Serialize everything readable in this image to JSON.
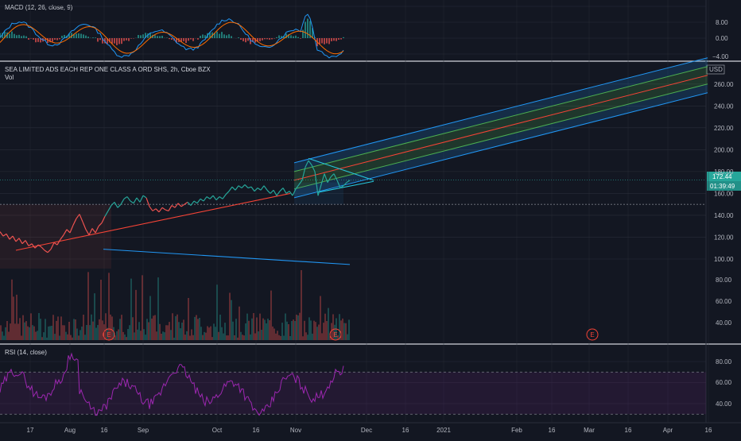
{
  "chart_data": [
    {
      "type": "line",
      "pane": "macd",
      "title": "MACD (12, 26, close, 9)",
      "ylim": [
        -4.5,
        9
      ],
      "y_ticks": [
        "8.00",
        "4.00",
        "0.00",
        "−4.00"
      ],
      "series": [
        {
          "name": "MACD",
          "color": "#2196f3"
        },
        {
          "name": "Signal",
          "color": "#ff6d00"
        },
        {
          "name": "Histogram",
          "color": "#26a69a"
        }
      ],
      "note_series_unlabeled": true
    },
    {
      "type": "line",
      "pane": "price",
      "title": "SEA LIMITED ADS EACH REP ONE CLASS A ORD SHS, 2h, Cboe BZX",
      "subtitle": "Vol",
      "currency": "USD",
      "ylim": [
        100,
        270
      ],
      "y_ticks": [
        "260.00",
        "240.00",
        "220.00",
        "200.00",
        "180.00",
        "160.00",
        "140.00",
        "120.00",
        "100.00"
      ],
      "last_price": "172.44",
      "countdown": "01:39:49",
      "price_line": 172.44,
      "reference_line": 150,
      "x_range": [
        0,
        440
      ],
      "price_points": [
        [
          0,
          125
        ],
        [
          4,
          121
        ],
        [
          8,
          123
        ],
        [
          12,
          118
        ],
        [
          16,
          121
        ],
        [
          20,
          116
        ],
        [
          24,
          119
        ],
        [
          28,
          114
        ],
        [
          32,
          117
        ],
        [
          36,
          112
        ],
        [
          40,
          114
        ],
        [
          44,
          110
        ],
        [
          48,
          113
        ],
        [
          52,
          111
        ],
        [
          56,
          108
        ],
        [
          60,
          106
        ],
        [
          64,
          109
        ],
        [
          68,
          115
        ],
        [
          72,
          113
        ],
        [
          76,
          118
        ],
        [
          80,
          122
        ],
        [
          84,
          127
        ],
        [
          88,
          124
        ],
        [
          92,
          131
        ],
        [
          96,
          137
        ],
        [
          100,
          141
        ],
        [
          104,
          134
        ],
        [
          108,
          127
        ],
        [
          112,
          122
        ],
        [
          116,
          128
        ],
        [
          120,
          124
        ],
        [
          124,
          130
        ],
        [
          128,
          133
        ],
        [
          132,
          139
        ],
        [
          136,
          144
        ],
        [
          140,
          149
        ],
        [
          144,
          152
        ],
        [
          148,
          147
        ],
        [
          152,
          150
        ],
        [
          156,
          155
        ],
        [
          160,
          157
        ],
        [
          164,
          153
        ],
        [
          168,
          151
        ],
        [
          172,
          156
        ],
        [
          176,
          152
        ],
        [
          180,
          158
        ],
        [
          184,
          156
        ],
        [
          188,
          148
        ],
        [
          192,
          144
        ],
        [
          196,
          146
        ],
        [
          200,
          143
        ],
        [
          204,
          147
        ],
        [
          208,
          145
        ],
        [
          212,
          144
        ],
        [
          216,
          149
        ],
        [
          220,
          147
        ],
        [
          224,
          151
        ],
        [
          228,
          148
        ],
        [
          232,
          150
        ],
        [
          236,
          152
        ],
        [
          240,
          149
        ],
        [
          244,
          153
        ],
        [
          248,
          151
        ],
        [
          252,
          155
        ],
        [
          256,
          153
        ],
        [
          260,
          157
        ],
        [
          264,
          155
        ],
        [
          268,
          158
        ],
        [
          272,
          154
        ],
        [
          276,
          157
        ],
        [
          280,
          155
        ],
        [
          284,
          159
        ],
        [
          288,
          162
        ],
        [
          292,
          166
        ],
        [
          296,
          163
        ],
        [
          300,
          167
        ],
        [
          304,
          165
        ],
        [
          308,
          168
        ],
        [
          312,
          165
        ],
        [
          316,
          166
        ],
        [
          320,
          162
        ],
        [
          324,
          165
        ],
        [
          328,
          163
        ],
        [
          332,
          167
        ],
        [
          336,
          163
        ],
        [
          340,
          160
        ],
        [
          344,
          163
        ],
        [
          348,
          158
        ],
        [
          352,
          162
        ],
        [
          356,
          165
        ],
        [
          360,
          160
        ],
        [
          364,
          162
        ],
        [
          368,
          158
        ],
        [
          372,
          164
        ],
        [
          376,
          168
        ],
        [
          380,
          172
        ],
        [
          384,
          184
        ],
        [
          388,
          190
        ],
        [
          392,
          186
        ],
        [
          396,
          180
        ],
        [
          400,
          158
        ],
        [
          404,
          168
        ],
        [
          408,
          178
        ],
        [
          412,
          170
        ],
        [
          416,
          175
        ],
        [
          420,
          178
        ],
        [
          424,
          172
        ],
        [
          428,
          165
        ],
        [
          432,
          167
        ],
        [
          436,
          170
        ],
        [
          440,
          172
        ]
      ],
      "trend_lines": [
        {
          "name": "lower-trendline",
          "color": "#f44336",
          "from": [
            20,
            108
          ],
          "to": [
            365,
            160
          ]
        },
        {
          "name": "blue-line",
          "color": "#2196f3",
          "from": [
            130,
            109
          ],
          "to": [
            440,
            95
          ]
        },
        {
          "name": "pennant-top",
          "color": "#26c6da",
          "from": [
            388,
            192
          ],
          "to": [
            470,
            172
          ]
        },
        {
          "name": "pennant-bottom",
          "color": "#26c6da",
          "from": [
            400,
            161
          ],
          "to": [
            470,
            171
          ]
        }
      ],
      "channel": {
        "start_x": 370,
        "end_x": 890,
        "start_mid": 172,
        "end_mid": 268,
        "offsets": [
          16,
          8,
          0,
          -8,
          -16
        ]
      },
      "volume_ylim": [
        30,
        160
      ],
      "volume_ticks": [
        "80.00",
        "60.00",
        "40.00"
      ],
      "earnings_markers": [
        "E",
        "E",
        "E"
      ],
      "x_axis_labels": [
        "17",
        "Aug",
        "16",
        "Sep",
        "Oct",
        "16",
        "Nov",
        "Dec",
        "16",
        "2021",
        "Feb",
        "16",
        "Mar",
        "16",
        "Apr",
        "16"
      ]
    },
    {
      "type": "line",
      "pane": "rsi",
      "title": "RSI (14, close)",
      "ylim": [
        25,
        95
      ],
      "y_ticks": [
        "80.00",
        "60.00",
        "40.00"
      ],
      "bands": [
        70,
        30
      ],
      "color": "#9c27b0"
    }
  ],
  "colors": {
    "background": "#131722",
    "grid": "#2a2e39",
    "text": "#d1d4dc",
    "up": "#26a69a",
    "down": "#ef5350",
    "macd_line": "#2196f3",
    "signal_line": "#ff6d00",
    "rsi": "#9c27b0",
    "price_badge": "#26a69a"
  }
}
